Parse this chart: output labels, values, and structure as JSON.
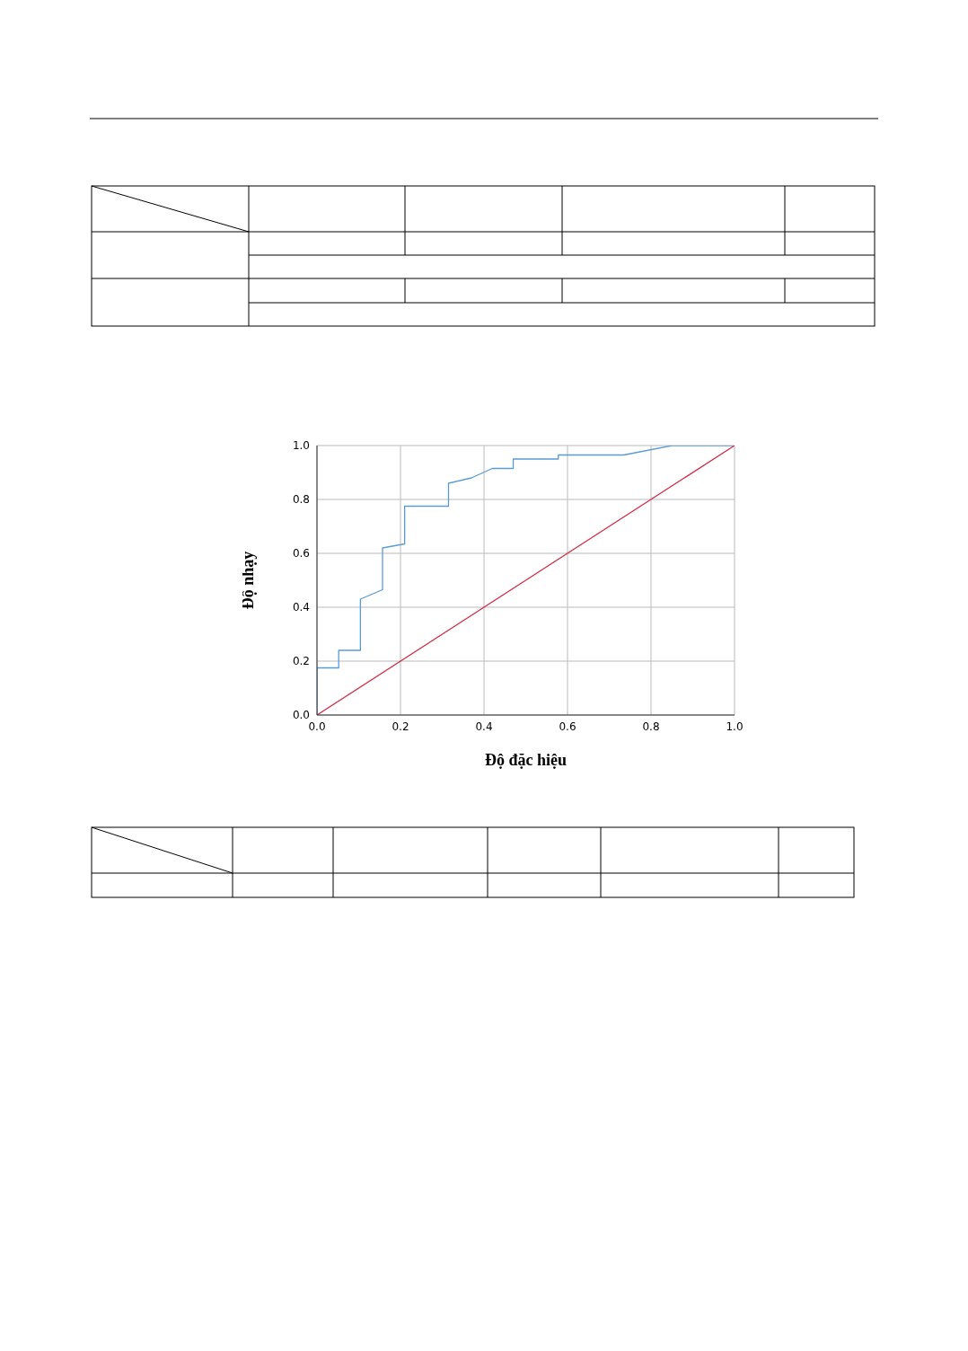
{
  "chart_data": {
    "type": "line",
    "xlabel": "Độ đặc hiệu",
    "ylabel": "Độ nhạy",
    "xlim": [
      0,
      1
    ],
    "ylim": [
      0,
      1
    ],
    "xticks": [
      {
        "value": 0,
        "label": "0.0"
      },
      {
        "value": 0.2,
        "label": "0.2"
      },
      {
        "value": 0.4,
        "label": "0.4"
      },
      {
        "value": 0.6,
        "label": "0.6"
      },
      {
        "value": 0.8,
        "label": "0.8"
      },
      {
        "value": 1,
        "label": "1.0"
      }
    ],
    "yticks": [
      {
        "value": 0,
        "label": "0.0"
      },
      {
        "value": 0.2,
        "label": "0.2"
      },
      {
        "value": 0.4,
        "label": "0.4"
      },
      {
        "value": 0.6,
        "label": "0.6"
      },
      {
        "value": 0.8,
        "label": "0.8"
      },
      {
        "value": 1,
        "label": "1.0"
      }
    ],
    "grid": true,
    "marker": "none",
    "series": [
      {
        "color": "#5b9bd5",
        "x": [
          0,
          0,
          0.052,
          0.052,
          0.104,
          0.104,
          0.157,
          0.157,
          0.21,
          0.21,
          0.315,
          0.315,
          0.37,
          0.42,
          0.47,
          0.47,
          0.578,
          0.578,
          0.735,
          0.85,
          1
        ],
        "values": [
          0,
          0.175,
          0.175,
          0.24,
          0.24,
          0.43,
          0.465,
          0.62,
          0.635,
          0.775,
          0.775,
          0.86,
          0.88,
          0.915,
          0.915,
          0.95,
          0.95,
          0.965,
          0.965,
          1,
          1
        ]
      },
      {
        "color": "#d0314a",
        "x": [
          0,
          1
        ],
        "values": [
          0,
          1
        ]
      }
    ]
  }
}
